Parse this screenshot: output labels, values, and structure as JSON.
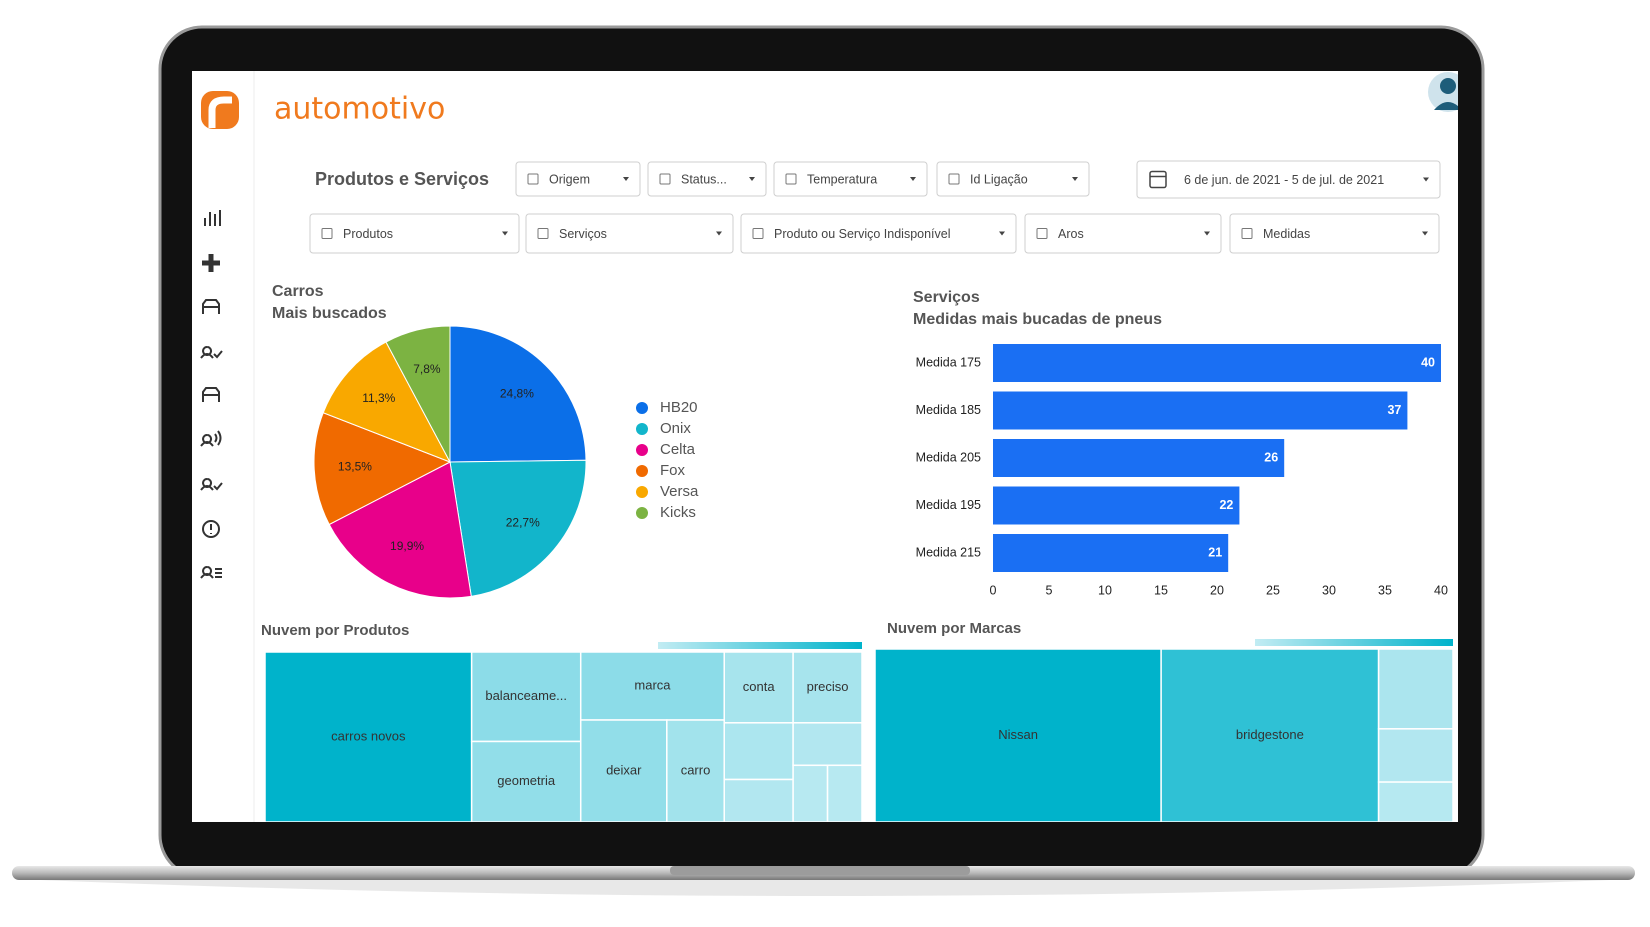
{
  "header": {
    "brand": "automotivo"
  },
  "page_title": "Produtos e Serviços",
  "filters": [
    "Origem",
    "Status...",
    "Temperatura",
    "Id Ligação"
  ],
  "date_range": "6 de jun. de 2021 - 5 de jul. de 2021",
  "filters_row2": [
    "Produtos",
    "Serviços",
    "Produto ou Serviço Indisponível",
    "Aros",
    "Medidas"
  ],
  "chart_data": [
    {
      "type": "pie",
      "title": "Carros",
      "subtitle": "Mais buscados",
      "categories": [
        "HB20",
        "Onix",
        "Celta",
        "Fox",
        "Versa",
        "Kicks"
      ],
      "values": [
        24.8,
        22.7,
        19.9,
        13.5,
        11.3,
        7.8
      ],
      "value_labels": [
        "24,8%",
        "22,7%",
        "19,9%",
        "13,5%",
        "11,3%",
        "7,8%"
      ],
      "colors": [
        "#0b6fe8",
        "#12b5cb",
        "#e8008a",
        "#f06a00",
        "#f9a800",
        "#7cb342"
      ],
      "legend": "right"
    },
    {
      "type": "bar",
      "orientation": "horizontal",
      "title": "Serviços",
      "subtitle": "Medidas mais bucadas de pneus",
      "categories": [
        "Medida 175",
        "Medida 185",
        "Medida 205",
        "Medida 195",
        "Medida 215"
      ],
      "values": [
        40,
        37,
        26,
        22,
        21
      ],
      "color": "#1a6ff3",
      "xlim": [
        0,
        40
      ],
      "xticks": [
        0,
        5,
        10,
        15,
        20,
        25,
        30,
        35,
        40
      ]
    },
    {
      "type": "treemap",
      "title": "Nuvem por Produtos",
      "categories": [
        "carros novos",
        "balanceame...",
        "geometria",
        "marca",
        "deixar",
        "carro",
        "conta",
        "preciso",
        null,
        null,
        null,
        null,
        null
      ],
      "values": [
        36,
        10,
        9,
        10,
        9,
        6,
        5,
        5,
        4,
        3,
        3,
        2,
        2
      ],
      "colors": [
        "#c2ecf3",
        "#00b3cb"
      ]
    },
    {
      "type": "treemap",
      "title": "Nuvem por Marcas",
      "categories": [
        "Nissan",
        "bridgestone",
        null,
        null,
        null
      ],
      "values": [
        50,
        38,
        6,
        4,
        3
      ],
      "colors": [
        "#c2ecf3",
        "#00b3cb"
      ]
    }
  ]
}
